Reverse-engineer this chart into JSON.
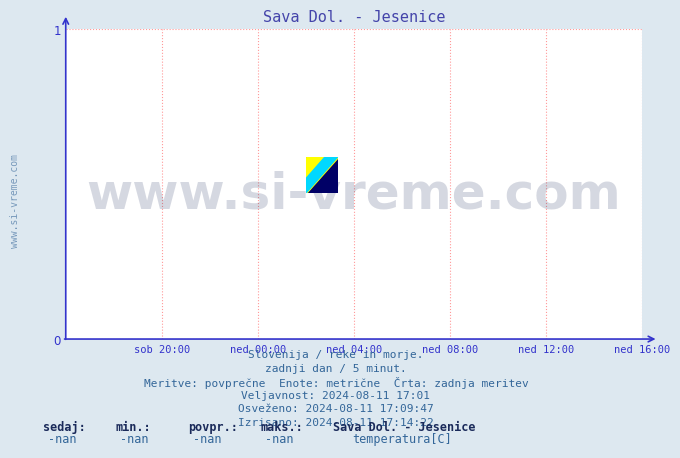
{
  "title": "Sava Dol. - Jesenice",
  "title_color": "#4444aa",
  "title_fontsize": 11,
  "bg_color": "#dde8f0",
  "plot_bg_color": "#ffffff",
  "ylim": [
    0,
    1
  ],
  "yticks": [
    0,
    1
  ],
  "xlim": [
    0,
    288
  ],
  "xtick_labels": [
    "sob 20:00",
    "ned 00:00",
    "ned 04:00",
    "ned 08:00",
    "ned 12:00",
    "ned 16:00"
  ],
  "xtick_positions": [
    48,
    96,
    144,
    192,
    240,
    288
  ],
  "grid_color": "#ff9999",
  "grid_style": ":",
  "axis_color": "#3333cc",
  "watermark_text": "www.si-vreme.com",
  "watermark_color": "#1a2a5a",
  "watermark_alpha": 0.18,
  "watermark_fontsize": 36,
  "sidebar_text": "www.si-vreme.com",
  "sidebar_color": "#7799bb",
  "sidebar_fontsize": 7,
  "footer_lines": [
    "Slovenija / reke in morje.",
    "zadnji dan / 5 minut.",
    "Meritve: povprečne  Enote: metrične  Črta: zadnja meritev",
    "Veljavnost: 2024-08-11 17:01",
    "Osveženo: 2024-08-11 17:09:47",
    "Izrisano: 2024-08-11 17:14:22"
  ],
  "footer_color": "#336699",
  "footer_fontsize": 8,
  "stat_labels": [
    "sedaj:",
    "min.:",
    "povpr.:",
    "maks.:"
  ],
  "stat_values": [
    "-nan",
    "-nan",
    "-nan",
    "-nan"
  ],
  "stat_color": "#336699",
  "stat_bold_color": "#1a2a5a",
  "legend_station": "Sava Dol. - Jesenice",
  "legend_var": "temperatura[C]",
  "legend_color": "#cc0000"
}
